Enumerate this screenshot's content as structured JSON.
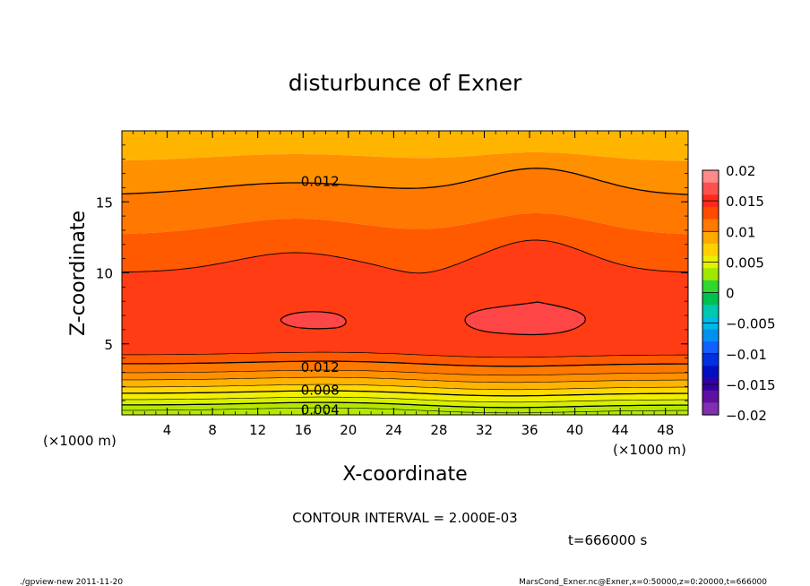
{
  "chart_data": {
    "type": "contour",
    "title": "disturbunce of Exner",
    "xlabel": "X-coordinate",
    "ylabel": "Z-coordinate",
    "x_unit_label": "(×1000 m)",
    "y_unit_label": "(×1000 m)",
    "xlim": [
      0,
      50
    ],
    "ylim": [
      0,
      20
    ],
    "x_ticks": [
      4,
      8,
      12,
      16,
      20,
      24,
      28,
      32,
      36,
      40,
      44,
      48
    ],
    "y_ticks": [
      5,
      10,
      15
    ],
    "contour_interval_text": "CONTOUR INTERVAL = 2.000E-03",
    "time_text": "t=666000 s",
    "contour_labels": [
      {
        "text": "0.012",
        "x": 17.5,
        "z": 16.5
      },
      {
        "text": "0.012",
        "x": 17.5,
        "z": 3.4
      },
      {
        "text": "0.008",
        "x": 17.5,
        "z": 1.8
      },
      {
        "text": "0.004",
        "x": 17.5,
        "z": 0.4
      }
    ],
    "colorbar": {
      "levels": [
        "0.02",
        "0.015",
        "0.01",
        "0.005",
        "0",
        "−0.005",
        "−0.01",
        "−0.015",
        "−0.02"
      ],
      "colors": [
        "#ff8a8a",
        "#ff5050",
        "#ff2a1a",
        "#ff4a00",
        "#ff7a00",
        "#ffa800",
        "#ffd000",
        "#e8f000",
        "#a0e800",
        "#30d830",
        "#00c050",
        "#00c8b0",
        "#00b8e8",
        "#0090f0",
        "#1060ff",
        "#0030e0",
        "#0010c0",
        "#3000a0",
        "#6010a0",
        "#8030b0"
      ]
    },
    "band_colors": {
      "lime": "#b4e800",
      "yellow_green": "#d8f000",
      "yellow": "#f0f000",
      "gold": "#ffd800",
      "amber": "#ffb400",
      "orange": "#ff9000",
      "dark_orange": "#ff7800",
      "orange_red": "#ff5a00",
      "red": "#ff3c14",
      "deep_red": "#ff2814",
      "light_red": "#ff4646"
    }
  },
  "footer": {
    "left": "./gpview-new   2011-11-20",
    "right": "MarsCond_Exner.nc@Exner,x=0:50000,z=0:20000,t=666000"
  }
}
